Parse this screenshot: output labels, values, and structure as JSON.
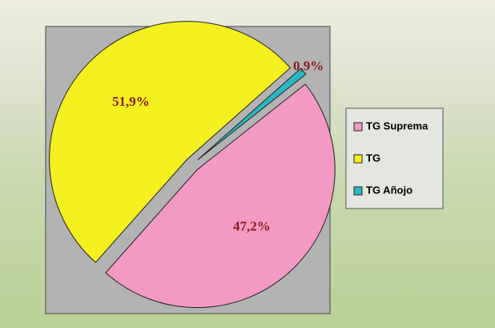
{
  "chart_data": {
    "type": "pie",
    "categories": [
      "TG Suprema",
      "TG",
      "TG Añojo"
    ],
    "values": [
      47.2,
      51.9,
      0.9
    ],
    "value_labels": [
      "47,2%",
      "51,9%",
      "0,9%"
    ],
    "colors": [
      "#f29ac4",
      "#f5f020",
      "#2bb8c0"
    ],
    "legend": "right"
  }
}
